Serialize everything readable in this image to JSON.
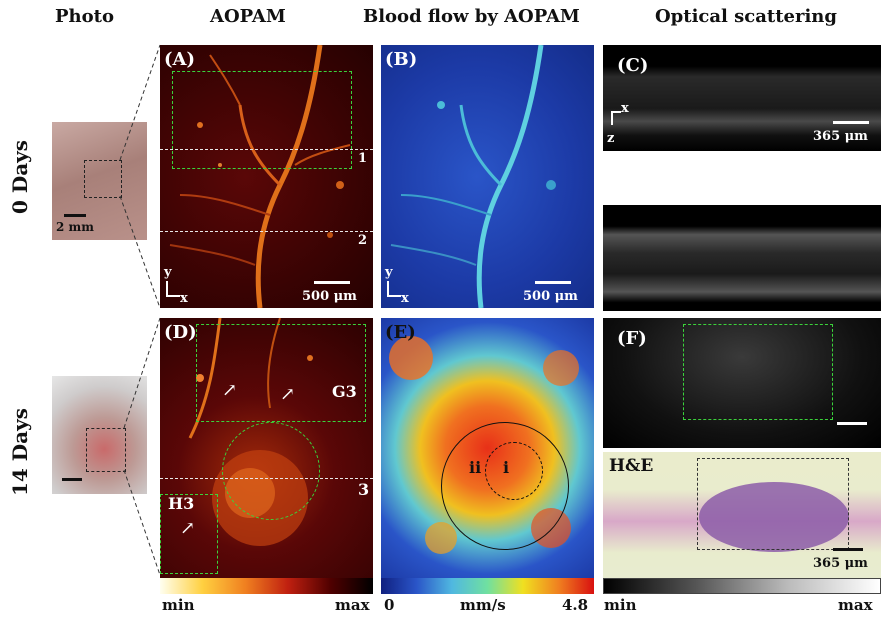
{
  "headers": {
    "photo": "Photo",
    "aopam": "AOPAM",
    "blood_flow": "Blood flow by AOPAM",
    "optical": "Optical scattering"
  },
  "rows": {
    "day0": "0 Days",
    "day14": "14 Days"
  },
  "panels": {
    "A": "(A)",
    "B": "(B)",
    "C": "(C)",
    "D": "(D)",
    "E": "(E)",
    "F": "(F)"
  },
  "photo_scale": "2 mm",
  "scale_500": "500 μm",
  "scale_365": "365 μm",
  "axis": {
    "x": "x",
    "y": "y",
    "z": "z"
  },
  "line_labels": {
    "l1": "1",
    "l2": "2",
    "l3": "3"
  },
  "roi": {
    "G": "G3",
    "H": "H3"
  },
  "circle": {
    "i": "i",
    "ii": "ii"
  },
  "he_label": "H&E",
  "colorbars": {
    "aopam": {
      "min": "min",
      "max": "max"
    },
    "flow": {
      "min": "0",
      "unit": "mm/s",
      "max": "4.8"
    },
    "optical": {
      "min": "min",
      "max": "max"
    }
  },
  "colors": {
    "dash_green": "#3bd33b",
    "hot_dark": "#3a0303",
    "flow_blue": "#1c3aa6"
  }
}
